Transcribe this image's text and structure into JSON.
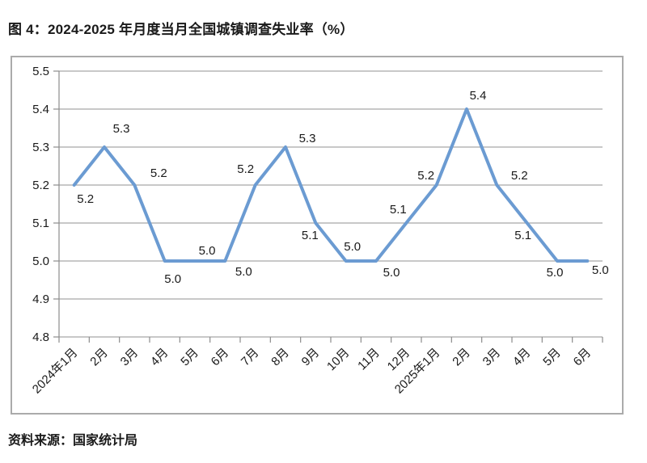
{
  "page": {
    "title": "图 4：2024-2025 年月度当月全国城镇调查失业率（%）",
    "source": "资料来源：国家统计局"
  },
  "colors": {
    "line": "#6B9BD2",
    "grid": "#A7A7A7",
    "axis": "#8C8C8C",
    "border": "#ABABAB",
    "text": "#1A1A1A",
    "background": "#FFFFFF"
  },
  "chart_data": {
    "type": "line",
    "title": "2024-2025 年月度当月全国城镇调查失业率（%）",
    "categories": [
      "2024年1月",
      "2月",
      "3月",
      "4月",
      "5月",
      "6月",
      "7月",
      "8月",
      "9月",
      "10月",
      "11月",
      "12月",
      "2025年1月",
      "2月",
      "3月",
      "4月",
      "5月",
      "6月"
    ],
    "values": [
      5.2,
      5.3,
      5.2,
      5.0,
      5.0,
      5.0,
      5.2,
      5.3,
      5.1,
      5.0,
      5.0,
      5.1,
      5.2,
      5.4,
      5.2,
      5.1,
      5.0,
      5.0
    ],
    "xlabel": "",
    "ylabel": "",
    "ylim": [
      4.8,
      5.5
    ],
    "ytick_step": 0.1,
    "ytick_labels": [
      "5.5",
      "5.4",
      "5.3",
      "5.2",
      "5.1",
      "5.0",
      "4.9",
      "4.8"
    ],
    "grid": true,
    "legend": "none",
    "data_labels": true,
    "x_label_rotation": -45
  }
}
